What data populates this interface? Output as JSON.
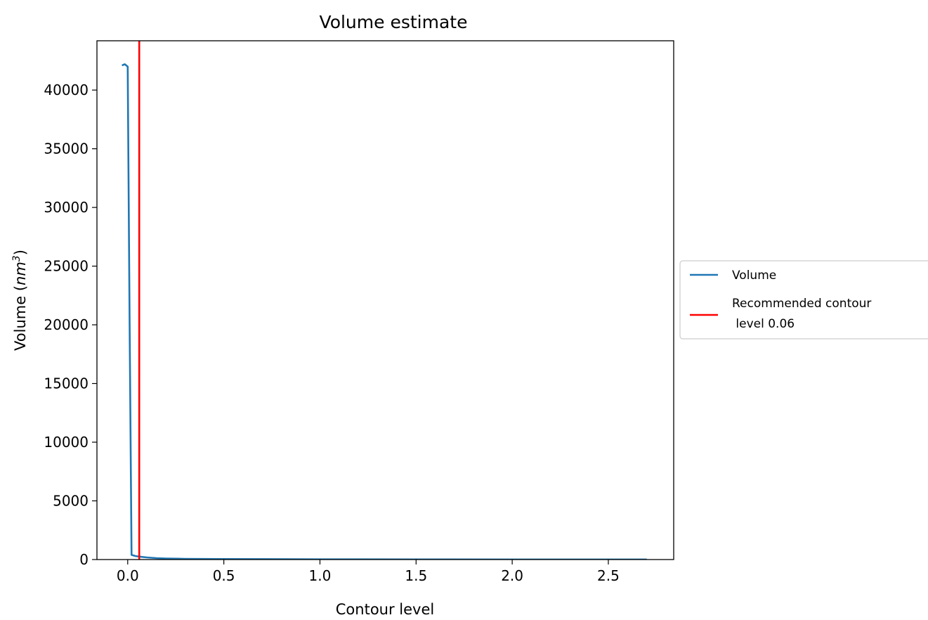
{
  "chart_data": {
    "type": "line",
    "title": "Volume estimate",
    "xlabel": "Contour level",
    "ylabel": {
      "prefix": "Volume (",
      "unit_base": "nm",
      "unit_exp": "3",
      "suffix": ")"
    },
    "xlim": [
      -0.16,
      2.84
    ],
    "ylim": [
      0,
      44200
    ],
    "xticks": [
      0.0,
      0.5,
      1.0,
      1.5,
      2.0,
      2.5
    ],
    "xtick_labels": [
      "0.0",
      "0.5",
      "1.0",
      "1.5",
      "2.0",
      "2.5"
    ],
    "yticks": [
      0,
      5000,
      10000,
      15000,
      20000,
      25000,
      30000,
      35000,
      40000
    ],
    "ytick_labels": [
      "0",
      "5000",
      "10000",
      "15000",
      "20000",
      "25000",
      "30000",
      "35000",
      "40000"
    ],
    "legend_position": "outside-right",
    "series": [
      {
        "name": "Volume",
        "color": "#1f77b4",
        "x": [
          -0.03,
          -0.015,
          0.0,
          0.01,
          0.02,
          0.04,
          0.06,
          0.1,
          0.15,
          0.2,
          0.3,
          0.5,
          1.0,
          1.5,
          2.0,
          2.5,
          2.7
        ],
        "y": [
          42100,
          42200,
          42000,
          20000,
          400,
          300,
          250,
          180,
          120,
          90,
          60,
          40,
          20,
          12,
          8,
          5,
          4
        ]
      }
    ],
    "vlines": [
      {
        "name": "Recommended contour\n level 0.06",
        "legend_lines": [
          "Recommended contour",
          " level 0.06"
        ],
        "x": 0.06,
        "color": "#ff0000"
      }
    ]
  }
}
